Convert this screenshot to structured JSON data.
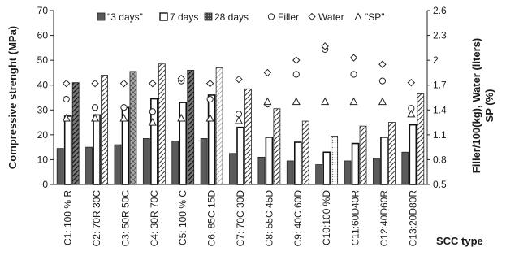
{
  "chart_data": {
    "type": "bar",
    "categories": [
      "C1: 100 % R",
      "C2: 70R 30C",
      "C3: 50R 50C",
      "C4: 30R 70C",
      "C5: 100 % C",
      "C6: 85C 15D",
      "C7: 70C 30D",
      "C8: 55C 45D",
      "C9: 40C 60D",
      "C10:100 %D",
      "C11:60D40R",
      "C12:40D60R",
      "C13:20D80R"
    ],
    "series": [
      {
        "name": "\"3 days\"",
        "kind": "bar",
        "axis": "left",
        "values": [
          14.5,
          15,
          16,
          18.5,
          17.5,
          18.5,
          12.5,
          11,
          9.5,
          8,
          9.5,
          10.5,
          13
        ],
        "color": "#5a5a5a",
        "pattern": "solid"
      },
      {
        "name": "7 days",
        "kind": "bar",
        "axis": "left",
        "values": [
          27.5,
          28,
          31,
          34.5,
          33,
          36,
          23,
          19,
          17,
          13,
          16.5,
          19,
          24
        ],
        "color": "#ffffff",
        "pattern": "outline"
      },
      {
        "name": "28 days",
        "kind": "bar",
        "axis": "left",
        "values": [
          41,
          44,
          45.5,
          48.5,
          46,
          47,
          38.5,
          30.5,
          25.5,
          19.5,
          23.5,
          25,
          36.5
        ],
        "pattern_by_category": [
          "diagonal-dark",
          "diagonal",
          "crosshatch",
          "diagonal",
          "diagonal-dark",
          "diagonal-light",
          "diagonal",
          "diagonal",
          "diagonal",
          "dots",
          "diagonal",
          "diagonal",
          "diagonal"
        ]
      },
      {
        "name": "Filler",
        "kind": "marker",
        "marker": "circle",
        "axis": "right",
        "values": [
          1.53,
          1.43,
          1.43,
          1.38,
          1.75,
          1.53,
          1.35,
          1.47,
          1.83,
          2.13,
          1.83,
          1.75,
          1.42
        ]
      },
      {
        "name": "Water",
        "kind": "marker",
        "marker": "diamond",
        "axis": "right",
        "values": [
          1.72,
          1.72,
          1.72,
          1.72,
          1.78,
          1.72,
          1.77,
          1.85,
          2.0,
          2.17,
          2.03,
          1.95,
          1.73
        ]
      },
      {
        "name": "\"SP\"",
        "kind": "marker",
        "marker": "triangle",
        "axis": "right",
        "values": [
          1.3,
          1.3,
          1.3,
          1.25,
          1.3,
          1.3,
          1.27,
          1.5,
          1.5,
          1.5,
          1.5,
          1.5,
          1.35
        ]
      }
    ],
    "ylabel": "Compressive strenght (MPa)",
    "ylim": [
      0,
      70
    ],
    "yticks": [
      0,
      10,
      20,
      30,
      40,
      50,
      60,
      70
    ],
    "y2label_lines": [
      "Filler/100(kg), Water (liters)",
      "SP (%)"
    ],
    "y2lim": [
      0.5,
      2.6
    ],
    "y2ticks": [
      "0.5",
      "0.8",
      "1.1",
      "1.4",
      "1.7",
      "2",
      "2.3",
      "2.6"
    ],
    "xlabel": "SCC type",
    "grid": false,
    "legend_position": "top"
  }
}
